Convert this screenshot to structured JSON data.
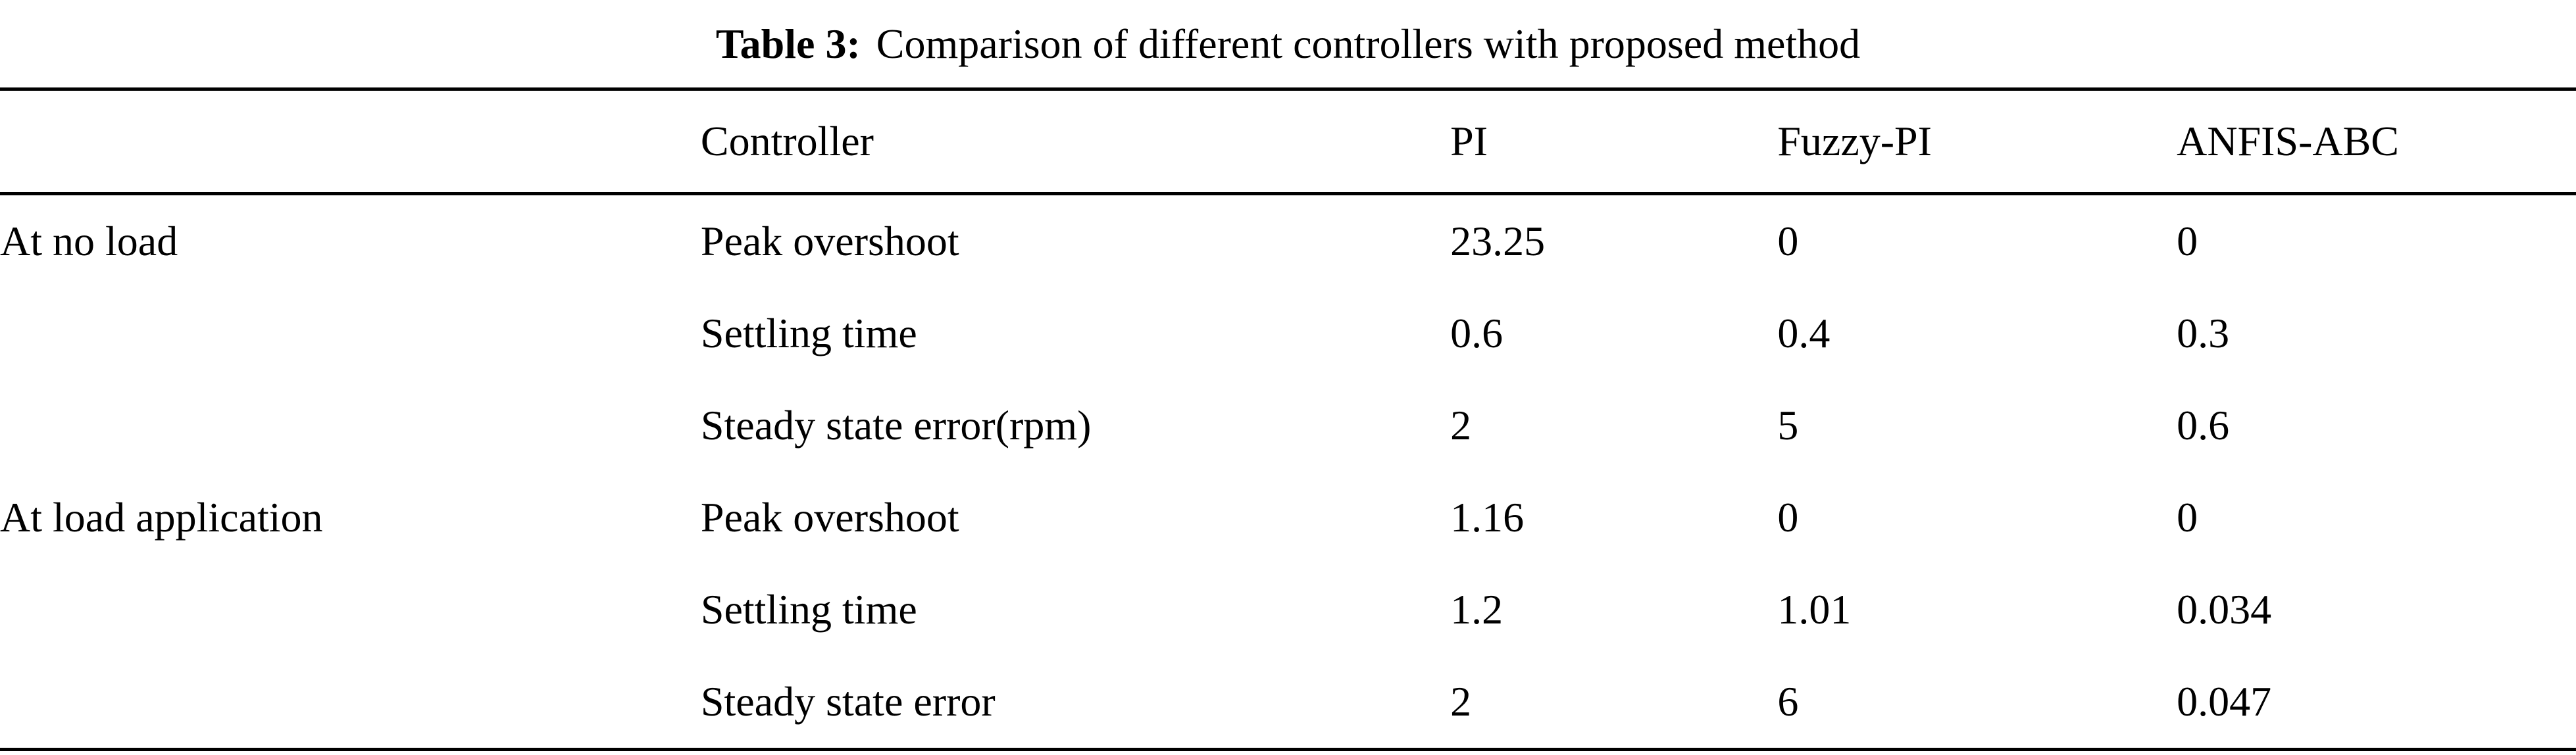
{
  "colors": {
    "background": "#ffffff",
    "text": "#000000",
    "rule": "#000000"
  },
  "title": {
    "label": "Table 3:",
    "text": "Comparison of different controllers with proposed method"
  },
  "table": {
    "headers": [
      "",
      "Controller",
      "PI",
      "Fuzzy-PI",
      "ANFIS-ABC"
    ],
    "rows": [
      {
        "group": "At no load",
        "metric": "Peak overshoot",
        "pi": "23.25",
        "fuzzy_pi": "0",
        "anfis_abc": "0"
      },
      {
        "group": "",
        "metric": "Settling time",
        "pi": "0.6",
        "fuzzy_pi": "0.4",
        "anfis_abc": "0.3"
      },
      {
        "group": "",
        "metric": "Steady state error(rpm)",
        "pi": "2",
        "fuzzy_pi": "5",
        "anfis_abc": "0.6"
      },
      {
        "group": "At load application",
        "metric": "Peak overshoot",
        "pi": "1.16",
        "fuzzy_pi": "0",
        "anfis_abc": "0"
      },
      {
        "group": "",
        "metric": "Settling time",
        "pi": "1.2",
        "fuzzy_pi": "1.01",
        "anfis_abc": "0.034"
      },
      {
        "group": "",
        "metric": "Steady state error",
        "pi": "2",
        "fuzzy_pi": "6",
        "anfis_abc": "0.047"
      }
    ]
  }
}
